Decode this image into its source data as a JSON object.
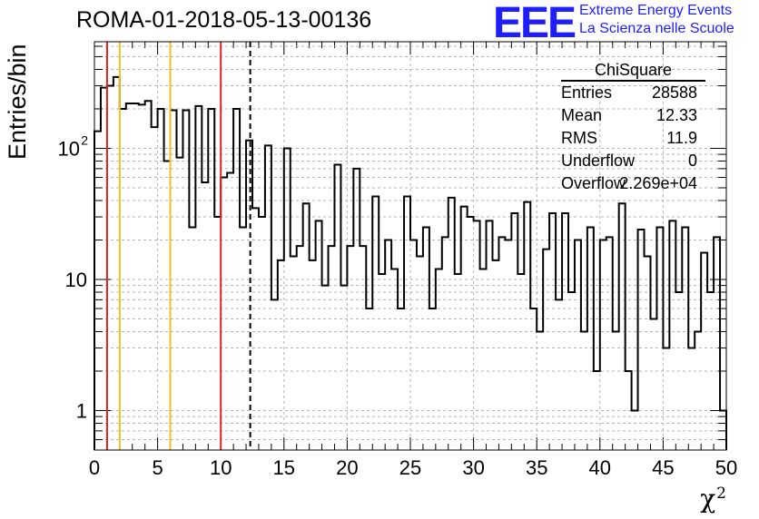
{
  "title": "ROMA-01-2018-05-13-00136",
  "logo": {
    "letters": "EEE",
    "line1": "Extreme Energy Events",
    "line2": "La Scienza nelle Scuole"
  },
  "stats": {
    "title": "ChiSquare",
    "rows": [
      {
        "key": "Entries",
        "value": "28588"
      },
      {
        "key": "Mean",
        "value": "12.33"
      },
      {
        "key": "RMS",
        "value": "11.9"
      },
      {
        "key": "Underflow",
        "value": "0"
      },
      {
        "key": "Overflow",
        "value": "2.269e+04"
      }
    ]
  },
  "colors": {
    "red_lines": "#dd2222",
    "yellow_lines": "#f0c020",
    "grid": "#b4b4b4",
    "logo": "#1e1eff"
  },
  "chart_data": {
    "type": "bar",
    "style": "step-histogram",
    "title": "ROMA-01-2018-05-13-00136",
    "xlabel": "χ",
    "xlabel_superscript": "2",
    "ylabel": "Entries/bin",
    "xlim": [
      0,
      50
    ],
    "ylim": [
      0.5,
      650
    ],
    "yscale": "log",
    "grid": true,
    "bin_width": 0.5,
    "x_ticks": [
      "0",
      "5",
      "10",
      "15",
      "20",
      "25",
      "30",
      "35",
      "40",
      "45",
      "50"
    ],
    "y_ticks": [
      {
        "value": 1,
        "label": "1"
      },
      {
        "value": 10,
        "label": "10"
      },
      {
        "value": 100,
        "label": "10",
        "exponent": "2"
      }
    ],
    "values": [
      135,
      290,
      300,
      350,
      200,
      220,
      220,
      215,
      230,
      145,
      200,
      80,
      195,
      85,
      195,
      25,
      210,
      55,
      200,
      30,
      60,
      65,
      200,
      25,
      115,
      35,
      30,
      105,
      7,
      14,
      100,
      15,
      18,
      38,
      14,
      28,
      9,
      18,
      75,
      9,
      18,
      70,
      18,
      6,
      43,
      11,
      20,
      12,
      6,
      43,
      20,
      15,
      25,
      6,
      12,
      21,
      42,
      11,
      36,
      30,
      28,
      12,
      28,
      14,
      21,
      20,
      32,
      11,
      39,
      6,
      4,
      17,
      32,
      7,
      32,
      8,
      20,
      4,
      25,
      2,
      20,
      21,
      4,
      38,
      2,
      1,
      24,
      15,
      5,
      25,
      3,
      28,
      8,
      25,
      3,
      4,
      16,
      8,
      21,
      1
    ],
    "vertical_lines": [
      {
        "x": 1,
        "color": "red",
        "style": "solid"
      },
      {
        "x": 2,
        "color": "yellow",
        "style": "solid"
      },
      {
        "x": 6,
        "color": "yellow",
        "style": "solid"
      },
      {
        "x": 10,
        "color": "red",
        "style": "solid"
      },
      {
        "x": 12.33,
        "color": "black",
        "style": "dashed"
      }
    ]
  }
}
